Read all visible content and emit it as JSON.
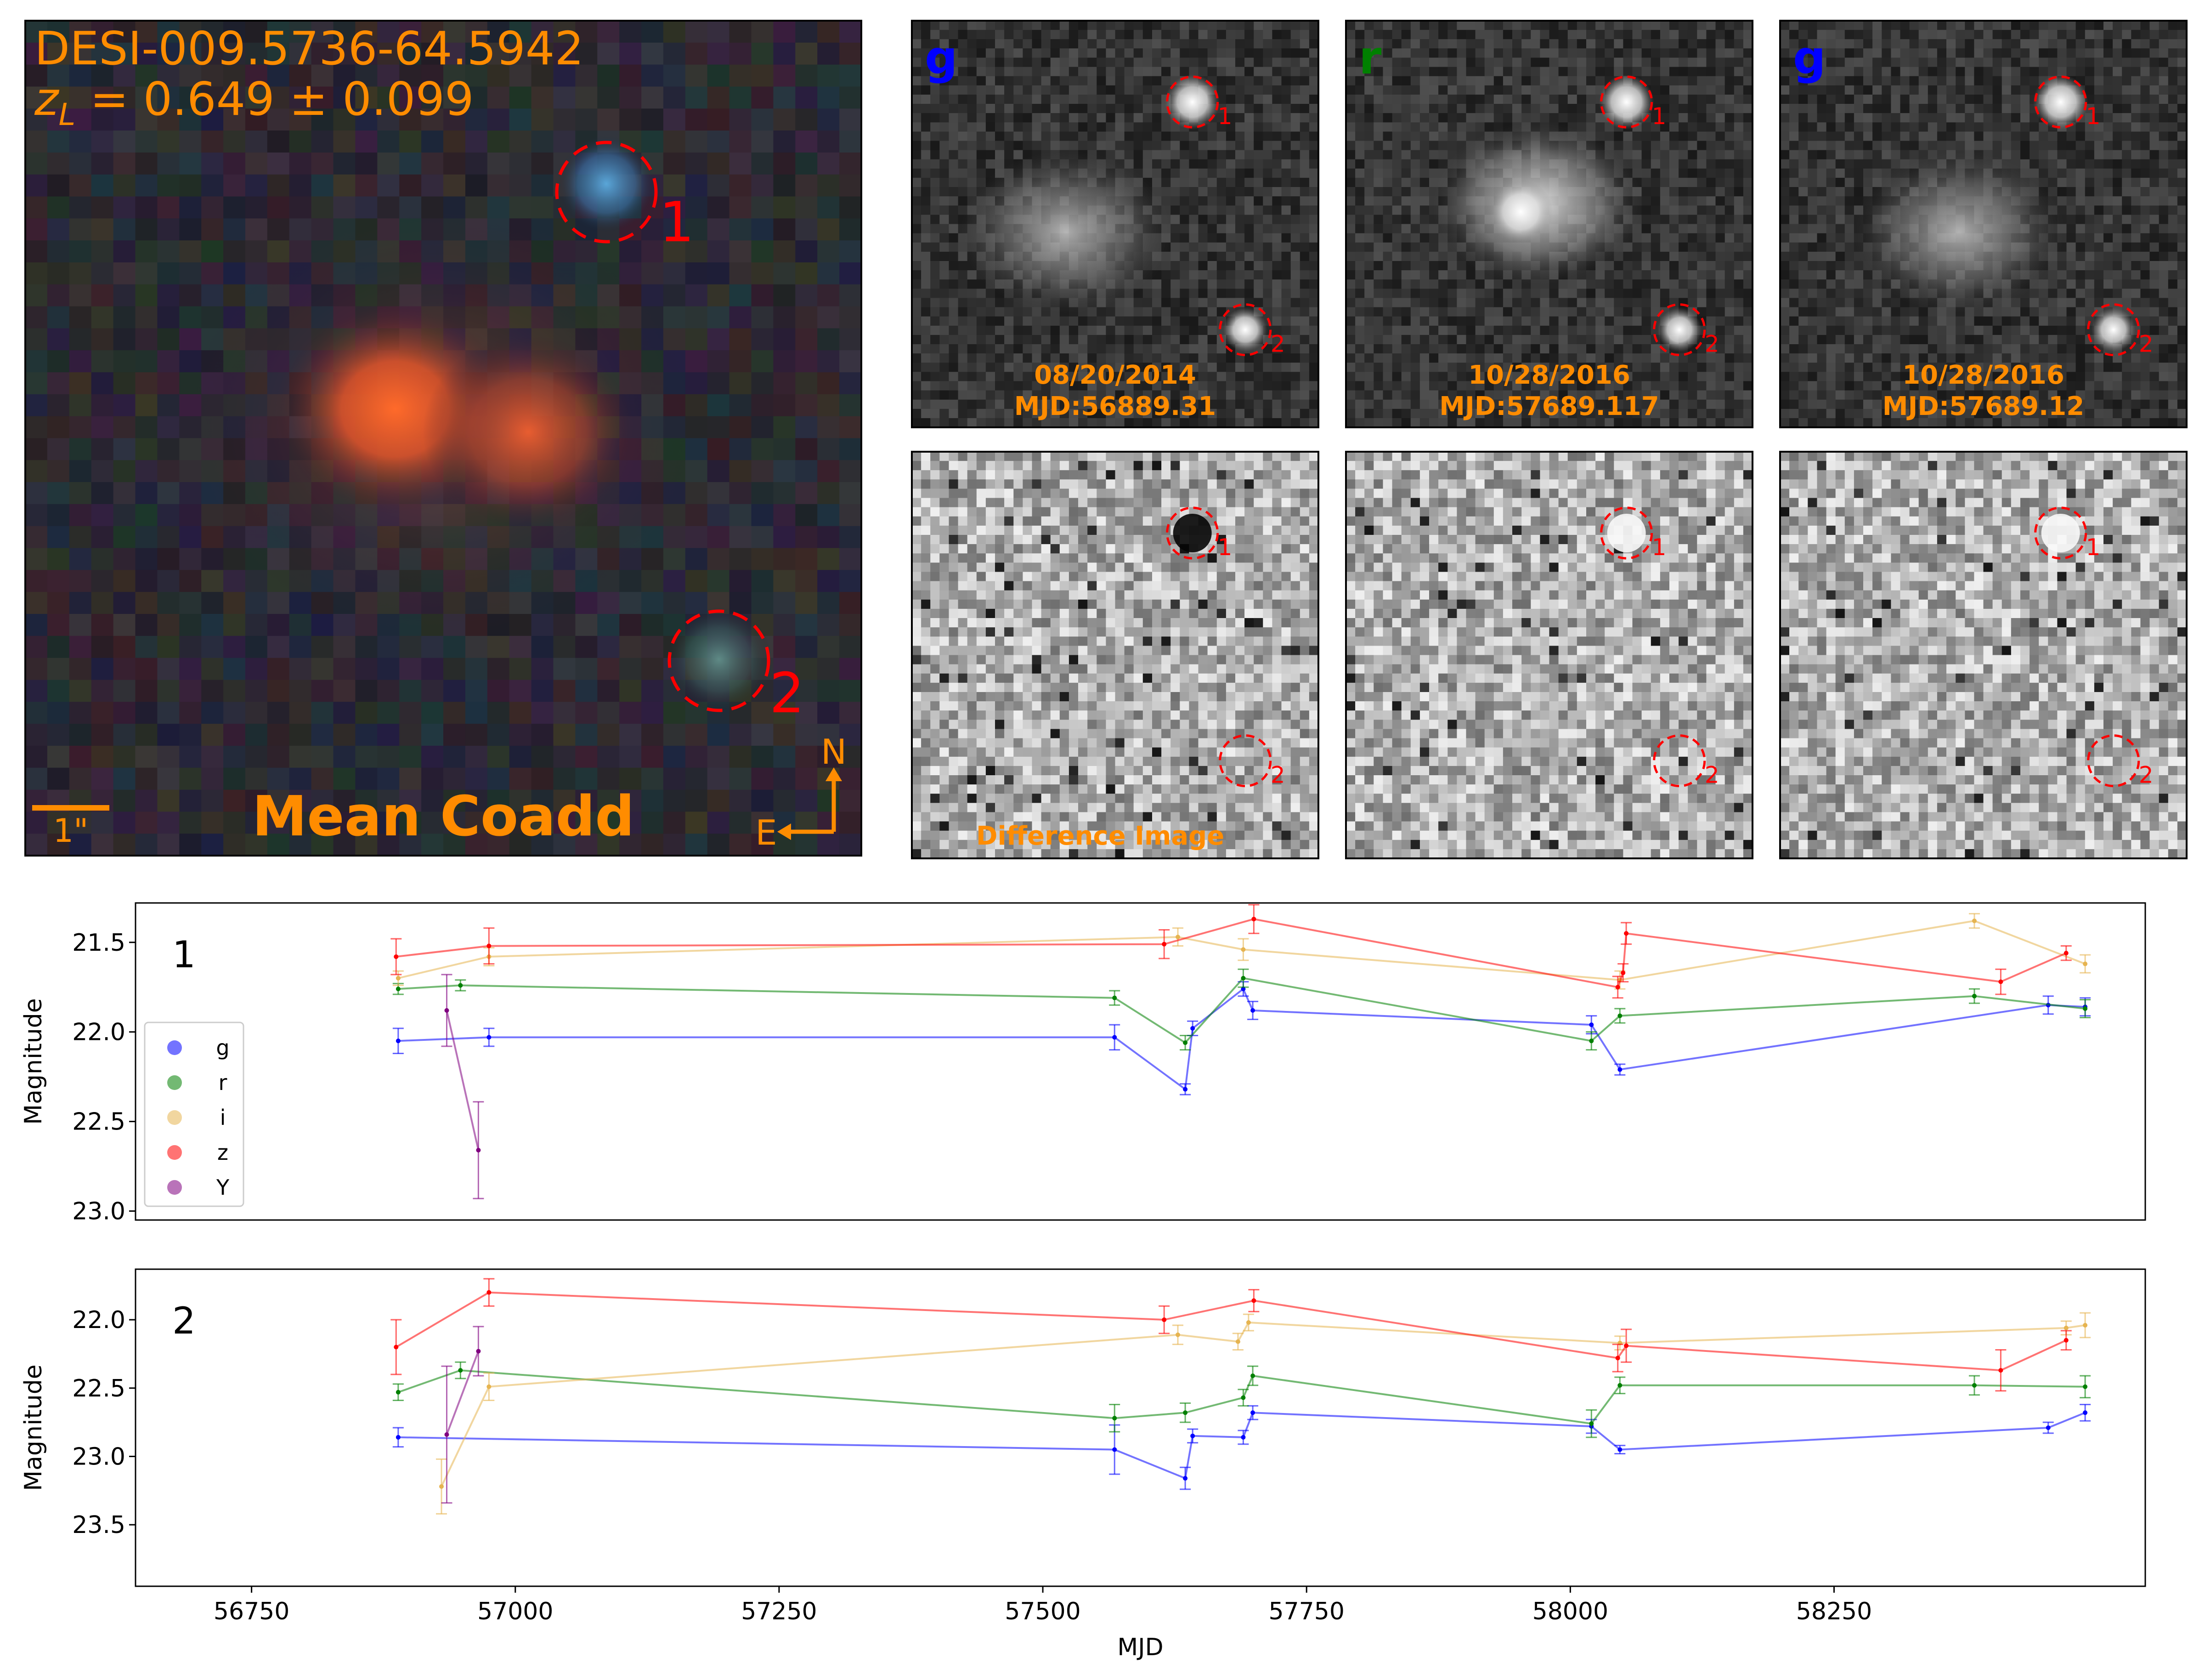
{
  "colors": {
    "orange_label": "#ff8c00",
    "red_circle": "#ff0000",
    "g": "#0000ff",
    "r": "#008000",
    "i": "#e6b450",
    "z": "#ff0000",
    "Y": "#800080"
  },
  "coadd": {
    "name_line": "DESI-009.5736-64.5942",
    "redshift_line": "z_L = 0.649 ± 0.099",
    "redshift_var": "z",
    "redshift_sub": "L",
    "redshift_rest": " = 0.649 ± 0.099",
    "caption": "Mean Coadd",
    "scale_label": "1\"",
    "compass_north": "N",
    "compass_east": "E",
    "source_labels": [
      "1",
      "2"
    ]
  },
  "cutouts": [
    {
      "band": "g",
      "band_color": "#0000ff",
      "date": "08/20/2014",
      "mjd_text": "MJD:56889.31"
    },
    {
      "band": "r",
      "band_color": "#008000",
      "date": "10/28/2016",
      "mjd_text": "MJD:57689.117"
    },
    {
      "band": "g",
      "band_color": "#0000ff",
      "date": "10/28/2016",
      "mjd_text": "MJD:57689.12"
    }
  ],
  "difference_label": "Difference Image",
  "cutout_source_labels": [
    "1",
    "2"
  ],
  "chart_data": [
    {
      "type": "line",
      "panel_label": "1",
      "xlabel": "",
      "ylabel": "Magnitude",
      "xlim": [
        56640,
        58545
      ],
      "ylim": [
        23.05,
        21.28
      ],
      "yticks": [
        21.5,
        22.0,
        22.5,
        23.0
      ],
      "legend": {
        "position": "left",
        "entries": [
          "g",
          "r",
          "i",
          "z",
          "Y"
        ]
      },
      "series": [
        {
          "name": "g",
          "color": "#0000ff",
          "points": [
            [
              56889,
              22.05,
              0.07
            ],
            [
              56975,
              22.03,
              0.05
            ],
            [
              57568,
              22.03,
              0.07
            ],
            [
              57635,
              22.32,
              0.03
            ],
            [
              57642,
              21.98,
              0.04
            ],
            [
              57690,
              21.76,
              0.04
            ],
            [
              57699,
              21.88,
              0.05
            ],
            [
              58020,
              21.96,
              0.05
            ],
            [
              58047,
              22.21,
              0.03
            ],
            [
              58453,
              21.85,
              0.05
            ],
            [
              58488,
              21.86,
              0.05
            ]
          ]
        },
        {
          "name": "r",
          "color": "#008000",
          "points": [
            [
              56889,
              21.76,
              0.03
            ],
            [
              56948,
              21.74,
              0.03
            ],
            [
              57568,
              21.81,
              0.04
            ],
            [
              57635,
              22.06,
              0.04
            ],
            [
              57690,
              21.7,
              0.05
            ],
            [
              58020,
              22.05,
              0.05
            ],
            [
              58047,
              21.91,
              0.04
            ],
            [
              58383,
              21.8,
              0.04
            ],
            [
              58488,
              21.87,
              0.05
            ]
          ]
        },
        {
          "name": "i",
          "color": "#e6b450",
          "points": [
            [
              56889,
              21.7,
              0.04
            ],
            [
              56975,
              21.58,
              0.05
            ],
            [
              57628,
              21.47,
              0.05
            ],
            [
              57690,
              21.54,
              0.06
            ],
            [
              58047,
              21.71,
              0.05
            ],
            [
              58383,
              21.38,
              0.04
            ],
            [
              58488,
              21.62,
              0.05
            ]
          ]
        },
        {
          "name": "z",
          "color": "#ff0000",
          "points": [
            [
              56887,
              21.58,
              0.1
            ],
            [
              56975,
              21.52,
              0.1
            ],
            [
              57615,
              21.51,
              0.08
            ],
            [
              57700,
              21.37,
              0.08
            ],
            [
              58045,
              21.75,
              0.06
            ],
            [
              58050,
              21.67,
              0.05
            ],
            [
              58053,
              21.45,
              0.06
            ],
            [
              58408,
              21.72,
              0.07
            ],
            [
              58470,
              21.56,
              0.04
            ]
          ]
        },
        {
          "name": "Y",
          "color": "#800080",
          "points": [
            [
              56935,
              21.88,
              0.2
            ],
            [
              56965,
              22.66,
              0.27
            ]
          ]
        }
      ]
    },
    {
      "type": "line",
      "panel_label": "2",
      "xlabel": "MJD",
      "ylabel": "Magnitude",
      "xlim": [
        56640,
        58545
      ],
      "ylim": [
        23.95,
        21.63
      ],
      "yticks": [
        22.0,
        22.5,
        23.0,
        23.5
      ],
      "xticks": [
        56750,
        57000,
        57250,
        57500,
        57750,
        58000,
        58250
      ],
      "series": [
        {
          "name": "g",
          "color": "#0000ff",
          "points": [
            [
              56889,
              22.86,
              0.07
            ],
            [
              57568,
              22.95,
              0.18
            ],
            [
              57635,
              23.16,
              0.08
            ],
            [
              57642,
              22.85,
              0.05
            ],
            [
              57690,
              22.86,
              0.05
            ],
            [
              57699,
              22.68,
              0.05
            ],
            [
              58020,
              22.78,
              0.05
            ],
            [
              58047,
              22.95,
              0.03
            ],
            [
              58453,
              22.79,
              0.04
            ],
            [
              58488,
              22.68,
              0.06
            ]
          ]
        },
        {
          "name": "r",
          "color": "#008000",
          "points": [
            [
              56889,
              22.53,
              0.06
            ],
            [
              56948,
              22.37,
              0.06
            ],
            [
              57568,
              22.72,
              0.1
            ],
            [
              57635,
              22.68,
              0.07
            ],
            [
              57690,
              22.57,
              0.06
            ],
            [
              57699,
              22.41,
              0.07
            ],
            [
              58020,
              22.76,
              0.1
            ],
            [
              58047,
              22.48,
              0.06
            ],
            [
              58383,
              22.48,
              0.07
            ],
            [
              58488,
              22.49,
              0.08
            ]
          ]
        },
        {
          "name": "i",
          "color": "#e6b450",
          "points": [
            [
              56930,
              23.22,
              0.2
            ],
            [
              56975,
              22.49,
              0.1
            ],
            [
              57628,
              22.11,
              0.07
            ],
            [
              57685,
              22.16,
              0.06
            ],
            [
              57695,
              22.02,
              0.06
            ],
            [
              58047,
              22.17,
              0.05
            ],
            [
              58470,
              22.06,
              0.05
            ],
            [
              58488,
              22.04,
              0.09
            ]
          ]
        },
        {
          "name": "z",
          "color": "#ff0000",
          "points": [
            [
              56887,
              22.2,
              0.2
            ],
            [
              56975,
              21.8,
              0.1
            ],
            [
              57615,
              22.0,
              0.1
            ],
            [
              57700,
              21.86,
              0.08
            ],
            [
              58045,
              22.28,
              0.1
            ],
            [
              58053,
              22.19,
              0.12
            ],
            [
              58408,
              22.37,
              0.15
            ],
            [
              58470,
              22.15,
              0.07
            ]
          ]
        },
        {
          "name": "Y",
          "color": "#800080",
          "points": [
            [
              56935,
              22.84,
              0.5
            ],
            [
              56965,
              22.23,
              0.18
            ]
          ]
        }
      ]
    }
  ]
}
